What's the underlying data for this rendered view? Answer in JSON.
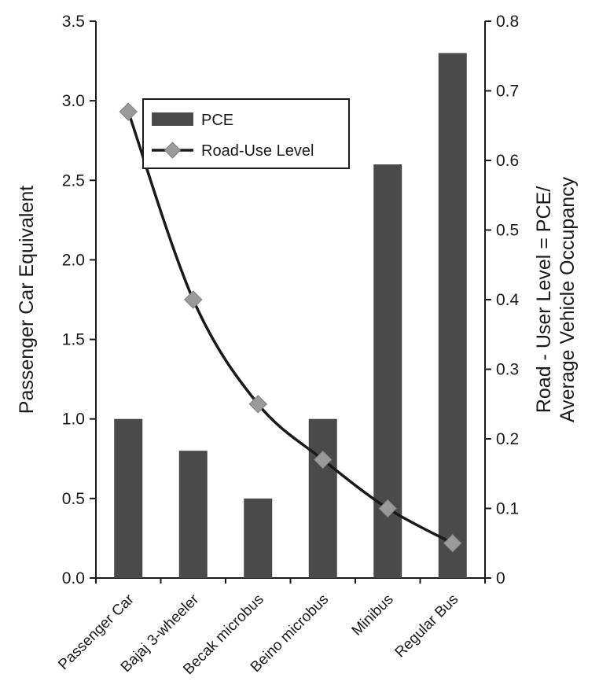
{
  "chart_data": {
    "type": "bar",
    "categories": [
      "Passenger Car",
      "Bajaj 3-wheeler",
      "Becak microbus",
      "Beino microbus",
      "Minibus",
      "Regular Bus"
    ],
    "series": [
      {
        "name": "PCE",
        "type": "bar",
        "axis": "left",
        "values": [
          1.0,
          0.8,
          0.5,
          1.0,
          2.6,
          3.3
        ],
        "color": "#4a4a4a"
      },
      {
        "name": "Road-Use Level",
        "type": "line",
        "axis": "right",
        "values": [
          0.67,
          0.4,
          0.25,
          0.17,
          0.1,
          0.05
        ],
        "color": "#1a1a1a",
        "marker_color": "#9a9a9a"
      }
    ],
    "ylabel": "Passenger Car Equivalent",
    "ylabel_right": [
      "Road - User Level = PCE/",
      "Average Vehicle Occupancy"
    ],
    "ylim": [
      0,
      3.5
    ],
    "ylim_right": [
      0,
      0.8
    ],
    "yticks": [
      "0.0",
      "0.5",
      "1.0",
      "1.5",
      "2.0",
      "2.5",
      "3.0",
      "3.5"
    ],
    "yticks_right": [
      "0",
      "0.1",
      "0.2",
      "0.3",
      "0.4",
      "0.5",
      "0.6",
      "0.7",
      "0.8"
    ],
    "legend_position": "top-left",
    "grid": false
  }
}
